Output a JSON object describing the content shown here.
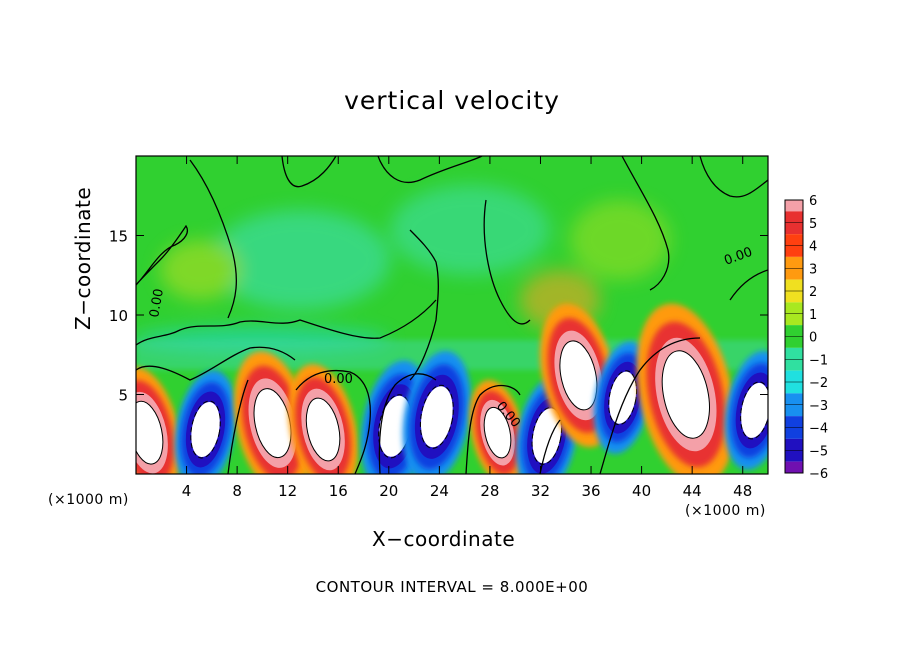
{
  "chart_data": {
    "type": "heatmap",
    "title": "vertical velocity",
    "xlabel": "X−coordinate",
    "ylabel": "Z−coordinate",
    "x_unit": "(×1000 m)",
    "x_unit_repeat": "(×1000 m)",
    "xlim": [
      0,
      50
    ],
    "ylim": [
      0,
      20
    ],
    "x_ticks": [
      4,
      8,
      12,
      16,
      20,
      24,
      28,
      32,
      36,
      40,
      44,
      48
    ],
    "y_ticks": [
      5,
      10,
      15
    ],
    "colorbar": {
      "levels": [
        "6",
        "5",
        "4",
        "3",
        "2",
        "1",
        "0",
        "−1",
        "−2",
        "−3",
        "−4",
        "−5",
        "−6"
      ],
      "range": [
        -6,
        6
      ],
      "colors": [
        "#f4a0a8",
        "#e83030",
        "#ff4010",
        "#ff9a10",
        "#f0e020",
        "#a8e820",
        "#30d030",
        "#30e0a0",
        "#20e0e0",
        "#1890f0",
        "#1040e0",
        "#2010c0",
        "#7010b0"
      ]
    },
    "contour_label": "0.00",
    "contour_interval_text": "CONTOUR INTERVAL = 8.000E+00",
    "features": [
      {
        "x": 0.8,
        "z": 2.6,
        "w": 12
      },
      {
        "x": 5.5,
        "z": 2.8,
        "w": -10
      },
      {
        "x": 10.8,
        "z": 3.2,
        "w": 14
      },
      {
        "x": 14.8,
        "z": 2.8,
        "w": 12
      },
      {
        "x": 20.5,
        "z": 3.0,
        "w": -12
      },
      {
        "x": 23.8,
        "z": 3.6,
        "w": -12
      },
      {
        "x": 28.6,
        "z": 2.6,
        "w": 8
      },
      {
        "x": 32.5,
        "z": 2.4,
        "w": -10
      },
      {
        "x": 35.0,
        "z": 6.2,
        "w": 14
      },
      {
        "x": 38.5,
        "z": 4.8,
        "w": -9
      },
      {
        "x": 43.5,
        "z": 5.0,
        "w": 20
      },
      {
        "x": 49.0,
        "z": 4.0,
        "w": -10
      }
    ]
  }
}
